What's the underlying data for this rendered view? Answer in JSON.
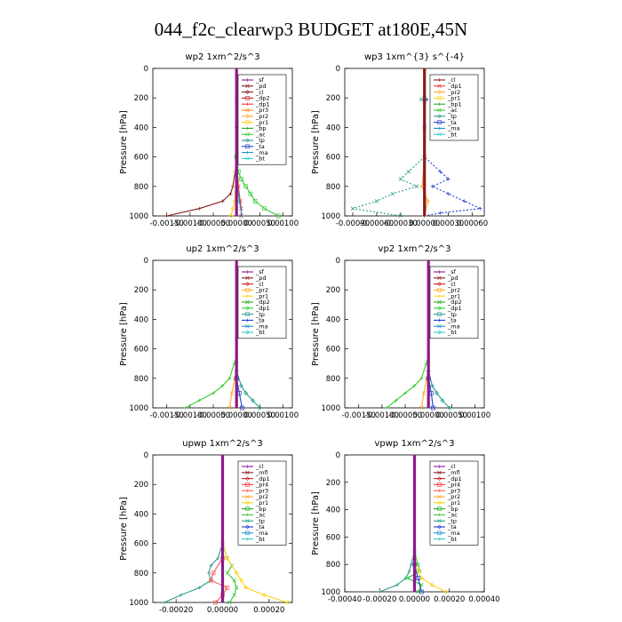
{
  "suptitle": "044_f2c_clearwp3  BUDGET at180E,45N",
  "chart_data": [
    {
      "type": "line",
      "title": "wp2   1xm^2/s^3",
      "ylabel": "Pressure [hPa]",
      "ylim": [
        1000,
        0
      ],
      "yticks": [
        0,
        200,
        400,
        600,
        800,
        1000
      ],
      "xlim": [
        -0.0018,
        0.0012
      ],
      "xtick_values": [
        -0.0015,
        -0.001,
        -0.0005,
        0.0,
        0.0005,
        0.001
      ],
      "xtick_labels": [
        "-0.00150",
        "-0.00100",
        "-0.00050",
        "0.00000",
        "0.00050",
        "0.00100"
      ],
      "series": [
        {
          "name": "_sf",
          "color": "#8b1a8b"
        },
        {
          "name": "_pd",
          "color": "#8b1a1a"
        },
        {
          "name": "_cl",
          "color": "#8b1a1a"
        },
        {
          "name": "_dp2",
          "color": "#cc2222"
        },
        {
          "name": "_dp1",
          "color": "#ee3333"
        },
        {
          "name": "_pr3",
          "color": "#ff8c1a"
        },
        {
          "name": "_pr2",
          "color": "#ffaa33"
        },
        {
          "name": "_pr1",
          "color": "#ffd21a"
        },
        {
          "name": "_bp",
          "color": "#22aa22"
        },
        {
          "name": "_ac",
          "color": "#33cc33"
        },
        {
          "name": "_tp",
          "color": "#2a9d8f"
        },
        {
          "name": "_ta",
          "color": "#1f3fcc"
        },
        {
          "name": "_ma",
          "color": "#1a8fcc"
        },
        {
          "name": "_bt",
          "color": "#33cccc"
        }
      ],
      "curves": [
        {
          "series": "_cl",
          "p": [
            0,
            200,
            400,
            600,
            700,
            800,
            850,
            900,
            950,
            1000
          ],
          "x": [
            0,
            0,
            0,
            0,
            -3e-05,
            -8e-05,
            -0.00013,
            -0.0003,
            -0.0008,
            -0.0015
          ]
        },
        {
          "series": "_dp1",
          "p": [
            0,
            600,
            700,
            800,
            900,
            950,
            1000
          ],
          "x": [
            0,
            0,
            2e-05,
            4e-05,
            8e-05,
            0.0001,
            0.0001
          ]
        },
        {
          "series": "_pr1",
          "p": [
            0,
            600,
            700,
            800,
            900,
            950,
            1000
          ],
          "x": [
            0,
            0,
            -1e-05,
            -2e-05,
            -4e-05,
            -8e-05,
            -0.00012
          ]
        },
        {
          "series": "_ac",
          "p": [
            0,
            600,
            700,
            750,
            800,
            850,
            900,
            950,
            1000
          ],
          "x": [
            0,
            0,
            4e-05,
            0.0001,
            0.0002,
            0.0003,
            0.0004,
            0.0006,
            0.0009
          ]
        },
        {
          "series": "_ma",
          "p": [
            0,
            700,
            800,
            900,
            1000
          ],
          "x": [
            0,
            0,
            2e-05,
            6e-05,
            0.00012
          ]
        },
        {
          "series": "_sf",
          "p": [
            0,
            1000
          ],
          "x": [
            0,
            0
          ]
        }
      ]
    },
    {
      "type": "line",
      "title": "wp3   1xm^{3} s^{-4}",
      "ylabel": "Pressure [hPa]",
      "ylim": [
        1000,
        0
      ],
      "yticks": [
        0,
        200,
        400,
        600,
        800,
        1000
      ],
      "xlim": [
        -0.001,
        0.00075
      ],
      "xtick_values": [
        -0.0009,
        -0.0006,
        -0.0003,
        0.0,
        0.0003,
        0.0006
      ],
      "xtick_labels": [
        "-0.00090",
        "-0.00060",
        "-0.00030",
        "0.00000",
        "0.00030",
        "0.00060"
      ],
      "series": [
        {
          "name": "_cl",
          "color": "#8b1a1a"
        },
        {
          "name": "_dp1",
          "color": "#ee3333"
        },
        {
          "name": "_pr2",
          "color": "#ffaa33"
        },
        {
          "name": "_pr1",
          "color": "#ffd21a"
        },
        {
          "name": "_bp1",
          "color": "#22aa22"
        },
        {
          "name": "_ac",
          "color": "#33cc33"
        },
        {
          "name": "_tp",
          "color": "#2a9d8f"
        },
        {
          "name": "_ta",
          "color": "#1f3fcc"
        },
        {
          "name": "_ma",
          "color": "#1a8fcc"
        },
        {
          "name": "_bt",
          "color": "#33cccc"
        }
      ],
      "curves": [
        {
          "series": "_ta",
          "p": [
            0,
            200,
            210,
            220,
            400,
            600,
            700,
            750,
            800,
            850,
            900,
            950,
            980,
            1000
          ],
          "x": [
            0,
            0,
            3e-05,
            0,
            0,
            0,
            0.0002,
            0.0003,
            0.0001,
            0.0003,
            0.0005,
            0.0007,
            0.0002,
            0
          ],
          "dashed": true
        },
        {
          "series": "_tp",
          "p": [
            0,
            200,
            210,
            220,
            400,
            600,
            700,
            750,
            800,
            850,
            900,
            950,
            1000
          ],
          "x": [
            0,
            0,
            -4e-05,
            0,
            0,
            0,
            -0.0002,
            -0.0003,
            -0.0001,
            -0.0004,
            -0.0006,
            -0.0009,
            -0.0003
          ],
          "dashed": true
        },
        {
          "series": "_pr2",
          "p": [
            0,
            600,
            800,
            900,
            1000
          ],
          "x": [
            0,
            0,
            -3e-05,
            4e-05,
            0
          ]
        },
        {
          "series": "_cl",
          "p": [
            0,
            1000
          ],
          "x": [
            0,
            0
          ]
        }
      ]
    },
    {
      "type": "line",
      "title": "up2   1xm^2/s^3",
      "ylabel": "Pressure [hPa]",
      "ylim": [
        1000,
        0
      ],
      "yticks": [
        0,
        200,
        400,
        600,
        800,
        1000
      ],
      "xlim": [
        -0.0018,
        0.0012
      ],
      "xtick_values": [
        -0.0015,
        -0.001,
        -0.0005,
        0.0,
        0.0005,
        0.001
      ],
      "xtick_labels": [
        "-0.00150",
        "-0.00100",
        "-0.00050",
        "0.00000",
        "0.00050",
        "0.00100"
      ],
      "series": [
        {
          "name": "_sf",
          "color": "#8b1a8b"
        },
        {
          "name": "_pd",
          "color": "#8b1a1a"
        },
        {
          "name": "_cl",
          "color": "#cc2222"
        },
        {
          "name": "_pr2",
          "color": "#ffaa33"
        },
        {
          "name": "_pr1",
          "color": "#ffd21a"
        },
        {
          "name": "_dp2",
          "color": "#22aa22"
        },
        {
          "name": "_dp1",
          "color": "#33cc33"
        },
        {
          "name": "_tp",
          "color": "#2a9d8f"
        },
        {
          "name": "_ta",
          "color": "#1f3fcc"
        },
        {
          "name": "_ma",
          "color": "#1a8fcc"
        },
        {
          "name": "_bt",
          "color": "#33cccc"
        }
      ],
      "curves": [
        {
          "series": "_dp1",
          "p": [
            0,
            650,
            700,
            800,
            850,
            900,
            950,
            1000
          ],
          "x": [
            0,
            0,
            -5e-05,
            -0.00015,
            -0.0003,
            -0.0005,
            -0.0008,
            -0.0011
          ]
        },
        {
          "series": "_pr2",
          "p": [
            0,
            700,
            800,
            900,
            1000
          ],
          "x": [
            0,
            0,
            -4e-05,
            -0.0001,
            -0.00015
          ]
        },
        {
          "series": "_tp",
          "p": [
            0,
            750,
            850,
            900,
            950,
            1000
          ],
          "x": [
            0,
            0,
            0.0001,
            0.0002,
            0.00035,
            0.0005
          ]
        },
        {
          "series": "_ta",
          "p": [
            0,
            800,
            900,
            1000
          ],
          "x": [
            0,
            0,
            6e-05,
            0.00012
          ]
        },
        {
          "series": "_sf",
          "p": [
            0,
            1000
          ],
          "x": [
            0,
            0
          ]
        }
      ]
    },
    {
      "type": "line",
      "title": "vp2   1xm^2/s^3",
      "ylabel": "Pressure [hPa]",
      "ylim": [
        1000,
        0
      ],
      "yticks": [
        0,
        200,
        400,
        600,
        800,
        1000
      ],
      "xlim": [
        -0.0018,
        0.0012
      ],
      "xtick_values": [
        -0.0015,
        -0.001,
        -0.0005,
        0.0,
        0.0005,
        0.001
      ],
      "xtick_labels": [
        "-0.00150",
        "-0.00100",
        "-0.00050",
        "0.00000",
        "0.00050",
        "0.00100"
      ],
      "series": [
        {
          "name": "_sf",
          "color": "#8b1a8b"
        },
        {
          "name": "_pd",
          "color": "#8b1a1a"
        },
        {
          "name": "_cl",
          "color": "#cc2222"
        },
        {
          "name": "_pr2",
          "color": "#ffaa33"
        },
        {
          "name": "_pr1",
          "color": "#ffd21a"
        },
        {
          "name": "_dp2",
          "color": "#22aa22"
        },
        {
          "name": "_dp1",
          "color": "#33cc33"
        },
        {
          "name": "_tp",
          "color": "#2a9d8f"
        },
        {
          "name": "_ta",
          "color": "#1f3fcc"
        },
        {
          "name": "_ma",
          "color": "#1a8fcc"
        },
        {
          "name": "_bt",
          "color": "#33cccc"
        }
      ],
      "curves": [
        {
          "series": "_dp1",
          "p": [
            0,
            650,
            700,
            800,
            850,
            900,
            950,
            1000
          ],
          "x": [
            0,
            0,
            -5e-05,
            -0.00015,
            -0.0003,
            -0.0005,
            -0.0007,
            -0.0009
          ]
        },
        {
          "series": "_pr2",
          "p": [
            0,
            700,
            800,
            900,
            1000
          ],
          "x": [
            0,
            0,
            -4e-05,
            -0.0001,
            -0.00015
          ]
        },
        {
          "series": "_tp",
          "p": [
            0,
            750,
            850,
            900,
            950,
            1000
          ],
          "x": [
            0,
            0,
            8e-05,
            0.00018,
            0.0003,
            0.00045
          ]
        },
        {
          "series": "_ta",
          "p": [
            0,
            800,
            900,
            1000
          ],
          "x": [
            0,
            0,
            6e-05,
            0.0001
          ]
        },
        {
          "series": "_sf",
          "p": [
            0,
            1000
          ],
          "x": [
            0,
            0
          ]
        }
      ]
    },
    {
      "type": "line",
      "title": "upwp   1xm^2/s^3",
      "ylabel": "Pressure [hPa]",
      "ylim": [
        1000,
        0
      ],
      "yticks": [
        0,
        200,
        400,
        600,
        800,
        1000
      ],
      "xlim": [
        -0.0003,
        0.0003
      ],
      "xtick_values": [
        -0.0002,
        0.0,
        0.0002
      ],
      "xtick_labels": [
        "-0.00020",
        "0.00000",
        "0.00020"
      ],
      "series": [
        {
          "name": "_cl",
          "color": "#8b1a8b"
        },
        {
          "name": "_mfl",
          "color": "#8b1a1a"
        },
        {
          "name": "_dp1",
          "color": "#cc2222"
        },
        {
          "name": "_pr4",
          "color": "#ee3333"
        },
        {
          "name": "_pr3",
          "color": "#ff5555"
        },
        {
          "name": "_pr2",
          "color": "#ffaa33"
        },
        {
          "name": "_pr1",
          "color": "#ffd21a"
        },
        {
          "name": "_bp",
          "color": "#22aa22"
        },
        {
          "name": "_ac",
          "color": "#33cc33"
        },
        {
          "name": "_tp",
          "color": "#2a9d8f"
        },
        {
          "name": "_ta",
          "color": "#1f3fcc"
        },
        {
          "name": "_ma",
          "color": "#1a8fcc"
        },
        {
          "name": "_bt",
          "color": "#33cccc"
        }
      ],
      "curves": [
        {
          "series": "_tp",
          "p": [
            0,
            600,
            700,
            750,
            800,
            850,
            900,
            950,
            1000
          ],
          "x": [
            0,
            0,
            -2e-05,
            -5e-05,
            -6e-05,
            -5e-05,
            -0.0001,
            -0.00018,
            -0.00025
          ]
        },
        {
          "series": "_ac",
          "p": [
            0,
            600,
            700,
            750,
            800,
            850,
            900,
            950,
            1000
          ],
          "x": [
            0,
            0,
            2e-05,
            4e-05,
            2e-05,
            5e-05,
            6e-05,
            5e-05,
            3e-05
          ]
        },
        {
          "series": "_pr1",
          "p": [
            0,
            600,
            700,
            800,
            850,
            900,
            950,
            1000
          ],
          "x": [
            0,
            0,
            2e-05,
            6e-05,
            8e-05,
            0.0001,
            0.00018,
            0.00028
          ]
        },
        {
          "series": "_pr3",
          "p": [
            0,
            700,
            800,
            850,
            900,
            950,
            1000
          ],
          "x": [
            0,
            0,
            -4e-05,
            -5e-05,
            2e-05,
            0,
            -3e-05
          ]
        },
        {
          "series": "_cl",
          "p": [
            0,
            1000
          ],
          "x": [
            0,
            0
          ]
        }
      ]
    },
    {
      "type": "line",
      "title": "vpwp   1xm^2/s^3",
      "ylabel": "Pressure [hPa]",
      "ylim": [
        1000,
        0
      ],
      "yticks": [
        0,
        200,
        400,
        600,
        800,
        1000
      ],
      "xlim": [
        -0.0004,
        0.0004
      ],
      "xtick_values": [
        -0.0004,
        -0.0002,
        0.0,
        0.0002,
        0.0004
      ],
      "xtick_labels": [
        "-0.00040",
        "-0.00020",
        "0.00000",
        "0.00020",
        "0.00040"
      ],
      "series": [
        {
          "name": "_cl",
          "color": "#8b1a8b"
        },
        {
          "name": "_mfl",
          "color": "#8b1a1a"
        },
        {
          "name": "_dp1",
          "color": "#cc2222"
        },
        {
          "name": "_pr4",
          "color": "#ee3333"
        },
        {
          "name": "_pr3",
          "color": "#ff5555"
        },
        {
          "name": "_pr2",
          "color": "#ffaa33"
        },
        {
          "name": "_pr1",
          "color": "#ffd21a"
        },
        {
          "name": "_bp",
          "color": "#22aa22"
        },
        {
          "name": "_ac",
          "color": "#33cc33"
        },
        {
          "name": "_tp",
          "color": "#2a9d8f"
        },
        {
          "name": "_ta",
          "color": "#1f3fcc"
        },
        {
          "name": "_ma",
          "color": "#1a8fcc"
        },
        {
          "name": "_bt",
          "color": "#33cccc"
        }
      ],
      "curves": [
        {
          "series": "_tp",
          "p": [
            0,
            700,
            800,
            850,
            900,
            950,
            1000
          ],
          "x": [
            0,
            0,
            -2e-05,
            -3e-05,
            -5e-05,
            -0.0001,
            -0.0002
          ]
        },
        {
          "series": "_ac",
          "p": [
            0,
            700,
            800,
            850,
            900,
            950,
            1000
          ],
          "x": [
            0,
            0,
            2e-05,
            3e-05,
            -4e-05,
            4e-05,
            2e-05
          ]
        },
        {
          "series": "_pr1",
          "p": [
            0,
            750,
            850,
            900,
            950,
            1000
          ],
          "x": [
            0,
            0,
            2e-05,
            4e-05,
            0.0001,
            0.00018
          ]
        },
        {
          "series": "_ta",
          "p": [
            0,
            800,
            900,
            1000
          ],
          "x": [
            0,
            0,
            2e-05,
            4e-05
          ]
        },
        {
          "series": "_cl",
          "p": [
            0,
            1000
          ],
          "x": [
            0,
            0
          ]
        }
      ]
    }
  ]
}
